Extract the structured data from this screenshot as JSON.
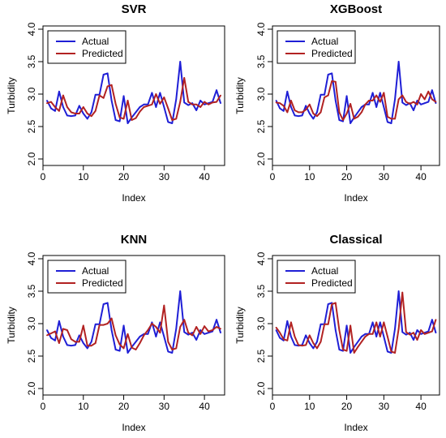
{
  "chart_data": [
    {
      "type": "line",
      "title": "SVR",
      "xlabel": "Index",
      "ylabel": "Turbidity",
      "xlim": [
        0,
        45
      ],
      "ylim": [
        1.9,
        4.05
      ],
      "xticks": [
        "0",
        "10",
        "20",
        "30",
        "40"
      ],
      "yticks": [
        "2.0",
        "2.5",
        "3.0",
        "3.5",
        "4.0"
      ],
      "legend_position": "top-left",
      "x": [
        1,
        2,
        3,
        4,
        5,
        6,
        7,
        8,
        9,
        10,
        11,
        12,
        13,
        14,
        15,
        16,
        17,
        18,
        19,
        20,
        21,
        22,
        23,
        24,
        25,
        26,
        27,
        28,
        29,
        30,
        31,
        32,
        33,
        34,
        35,
        36,
        37,
        38,
        39,
        40,
        41,
        42,
        43,
        44
      ],
      "series": [
        {
          "name": "Actual",
          "color": "#1f1fd6",
          "values": [
            2.9,
            2.78,
            2.74,
            3.04,
            2.8,
            2.67,
            2.66,
            2.67,
            2.82,
            2.7,
            2.62,
            2.72,
            2.99,
            2.99,
            3.3,
            3.32,
            2.9,
            2.6,
            2.58,
            2.97,
            2.55,
            2.64,
            2.72,
            2.8,
            2.84,
            2.84,
            3.02,
            2.8,
            3.02,
            2.8,
            2.57,
            2.55,
            2.92,
            3.5,
            2.87,
            2.83,
            2.86,
            2.75,
            2.9,
            2.84,
            2.86,
            2.88,
            3.06,
            2.86
          ]
        },
        {
          "name": "Predicted",
          "color": "#b22222",
          "values": [
            2.86,
            2.88,
            2.8,
            2.74,
            2.98,
            2.8,
            2.72,
            2.7,
            2.7,
            2.8,
            2.7,
            2.66,
            2.74,
            2.98,
            2.94,
            3.12,
            3.14,
            2.85,
            2.64,
            2.62,
            2.9,
            2.6,
            2.63,
            2.73,
            2.8,
            2.82,
            2.84,
            3.0,
            2.85,
            2.95,
            2.78,
            2.6,
            2.62,
            2.88,
            3.25,
            2.88,
            2.84,
            2.84,
            2.8,
            2.88,
            2.84,
            2.87,
            2.88,
            2.98
          ]
        }
      ]
    },
    {
      "type": "line",
      "title": "XGBoost",
      "xlabel": "Index",
      "ylabel": "Turbidity",
      "xlim": [
        0,
        45
      ],
      "ylim": [
        1.9,
        4.05
      ],
      "xticks": [
        "0",
        "10",
        "20",
        "30",
        "40"
      ],
      "yticks": [
        "2.0",
        "2.5",
        "3.0",
        "3.5",
        "4.0"
      ],
      "legend_position": "top-left",
      "x": [
        1,
        2,
        3,
        4,
        5,
        6,
        7,
        8,
        9,
        10,
        11,
        12,
        13,
        14,
        15,
        16,
        17,
        18,
        19,
        20,
        21,
        22,
        23,
        24,
        25,
        26,
        27,
        28,
        29,
        30,
        31,
        32,
        33,
        34,
        35,
        36,
        37,
        38,
        39,
        40,
        41,
        42,
        43,
        44
      ],
      "series": [
        {
          "name": "Actual",
          "color": "#1f1fd6",
          "values": [
            2.9,
            2.78,
            2.74,
            3.04,
            2.8,
            2.67,
            2.66,
            2.67,
            2.82,
            2.7,
            2.62,
            2.72,
            2.99,
            2.99,
            3.3,
            3.32,
            2.9,
            2.6,
            2.58,
            2.97,
            2.55,
            2.64,
            2.72,
            2.8,
            2.84,
            2.84,
            3.02,
            2.8,
            3.02,
            2.8,
            2.57,
            2.55,
            2.92,
            3.5,
            2.87,
            2.83,
            2.86,
            2.75,
            2.9,
            2.84,
            2.86,
            2.88,
            3.06,
            2.86
          ]
        },
        {
          "name": "Predicted",
          "color": "#b22222",
          "values": [
            2.87,
            2.86,
            2.82,
            2.72,
            2.9,
            2.75,
            2.72,
            2.72,
            2.76,
            2.84,
            2.7,
            2.66,
            2.72,
            2.95,
            2.98,
            3.2,
            3.19,
            2.72,
            2.6,
            2.7,
            2.85,
            2.62,
            2.65,
            2.72,
            2.84,
            2.9,
            2.9,
            2.98,
            2.88,
            3.02,
            2.65,
            2.62,
            2.62,
            2.92,
            2.98,
            2.88,
            2.85,
            2.88,
            2.84,
            3.0,
            2.92,
            3.04,
            2.92,
            2.88
          ]
        }
      ]
    },
    {
      "type": "line",
      "title": "KNN",
      "xlabel": "Index",
      "ylabel": "Turbidity",
      "xlim": [
        0,
        45
      ],
      "ylim": [
        1.9,
        4.05
      ],
      "xticks": [
        "0",
        "10",
        "20",
        "30",
        "40"
      ],
      "yticks": [
        "2.0",
        "2.5",
        "3.0",
        "3.5",
        "4.0"
      ],
      "legend_position": "top-left",
      "x": [
        1,
        2,
        3,
        4,
        5,
        6,
        7,
        8,
        9,
        10,
        11,
        12,
        13,
        14,
        15,
        16,
        17,
        18,
        19,
        20,
        21,
        22,
        23,
        24,
        25,
        26,
        27,
        28,
        29,
        30,
        31,
        32,
        33,
        34,
        35,
        36,
        37,
        38,
        39,
        40,
        41,
        42,
        43,
        44
      ],
      "series": [
        {
          "name": "Actual",
          "color": "#1f1fd6",
          "values": [
            2.9,
            2.78,
            2.74,
            3.04,
            2.8,
            2.67,
            2.66,
            2.67,
            2.82,
            2.7,
            2.62,
            2.72,
            2.99,
            2.99,
            3.3,
            3.32,
            2.9,
            2.6,
            2.58,
            2.97,
            2.55,
            2.64,
            2.72,
            2.8,
            2.84,
            2.84,
            3.02,
            2.8,
            3.02,
            2.8,
            2.57,
            2.55,
            2.92,
            3.5,
            2.87,
            2.83,
            2.86,
            2.75,
            2.9,
            2.84,
            2.86,
            2.88,
            3.06,
            2.86
          ]
        },
        {
          "name": "Predicted",
          "color": "#b22222",
          "values": [
            2.82,
            2.85,
            2.88,
            2.7,
            2.92,
            2.9,
            2.76,
            2.72,
            2.72,
            2.97,
            2.66,
            2.66,
            2.7,
            2.98,
            2.98,
            3.0,
            3.08,
            2.82,
            2.68,
            2.62,
            2.84,
            2.63,
            2.6,
            2.7,
            2.82,
            2.9,
            3.0,
            2.95,
            2.86,
            3.28,
            2.72,
            2.6,
            2.62,
            2.95,
            3.06,
            2.86,
            2.82,
            2.95,
            2.84,
            2.96,
            2.88,
            2.9,
            2.95,
            2.92
          ]
        }
      ]
    },
    {
      "type": "line",
      "title": "Classical",
      "xlabel": "Index",
      "ylabel": "Turbidity",
      "xlim": [
        0,
        45
      ],
      "ylim": [
        1.9,
        4.05
      ],
      "xticks": [
        "0",
        "10",
        "20",
        "30",
        "40"
      ],
      "yticks": [
        "2.0",
        "2.5",
        "3.0",
        "3.5",
        "4.0"
      ],
      "legend_position": "top-left",
      "x": [
        1,
        2,
        3,
        4,
        5,
        6,
        7,
        8,
        9,
        10,
        11,
        12,
        13,
        14,
        15,
        16,
        17,
        18,
        19,
        20,
        21,
        22,
        23,
        24,
        25,
        26,
        27,
        28,
        29,
        30,
        31,
        32,
        33,
        34,
        35,
        36,
        37,
        38,
        39,
        40,
        41,
        42,
        43,
        44
      ],
      "series": [
        {
          "name": "Actual",
          "color": "#1f1fd6",
          "values": [
            2.9,
            2.78,
            2.74,
            3.04,
            2.8,
            2.67,
            2.66,
            2.67,
            2.82,
            2.7,
            2.62,
            2.72,
            2.99,
            2.99,
            3.3,
            3.32,
            2.9,
            2.6,
            2.58,
            2.97,
            2.55,
            2.64,
            2.72,
            2.8,
            2.84,
            2.84,
            3.02,
            2.8,
            3.02,
            2.8,
            2.57,
            2.55,
            2.92,
            3.5,
            2.87,
            2.83,
            2.86,
            2.75,
            2.9,
            2.84,
            2.86,
            2.88,
            3.06,
            2.86
          ]
        },
        {
          "name": "Predicted",
          "color": "#b22222",
          "values": [
            2.94,
            2.86,
            2.76,
            2.74,
            3.02,
            2.8,
            2.67,
            2.66,
            2.67,
            2.82,
            2.7,
            2.62,
            2.72,
            2.99,
            2.99,
            3.3,
            3.32,
            2.9,
            2.6,
            2.58,
            2.97,
            2.55,
            2.64,
            2.72,
            2.8,
            2.84,
            2.84,
            3.02,
            2.8,
            3.02,
            2.8,
            2.57,
            2.55,
            2.92,
            3.48,
            2.87,
            2.83,
            2.86,
            2.75,
            2.9,
            2.84,
            2.86,
            2.88,
            3.06
          ]
        }
      ]
    }
  ]
}
